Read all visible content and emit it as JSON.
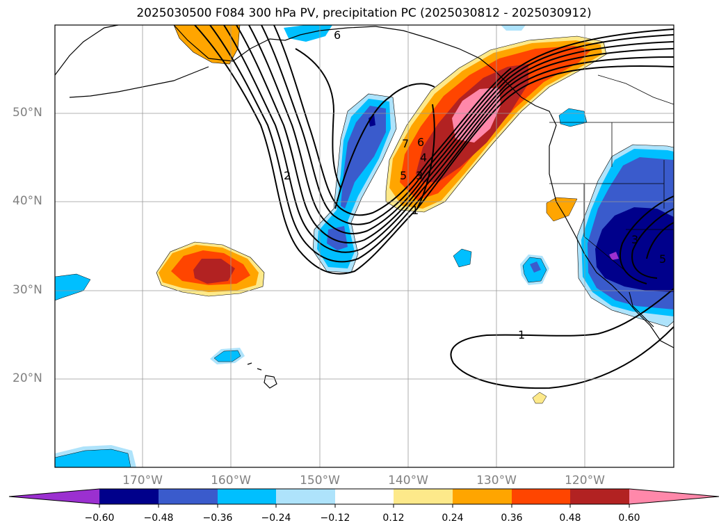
{
  "title": "2025030500 F084 300 hPa PV, precipitation PC (2025030812 - 2025030912)",
  "map": {
    "lat_ticks": [
      "50°N",
      "40°N",
      "30°N",
      "20°N"
    ],
    "lon_ticks": [
      "170°W",
      "160°W",
      "150°W",
      "140°W",
      "130°W",
      "120°W"
    ],
    "grid": true,
    "pv_contour_labels": [
      "6",
      "2",
      "7",
      "6",
      "5",
      "4",
      "3",
      "1",
      "1",
      "5",
      "3"
    ]
  },
  "colorbar": {
    "ticks": [
      "−0.60",
      "−0.48",
      "−0.36",
      "−0.24",
      "−0.12",
      "0.12",
      "0.24",
      "0.36",
      "0.48",
      "0.60"
    ],
    "colors": [
      "#9b30d0",
      "#00008b",
      "#3a5bcc",
      "#00bfff",
      "#aee3fb",
      "#ffffff",
      "#fde98a",
      "#ffa500",
      "#ff4500",
      "#b22222",
      "#ff88aa"
    ],
    "extend": "both"
  }
}
